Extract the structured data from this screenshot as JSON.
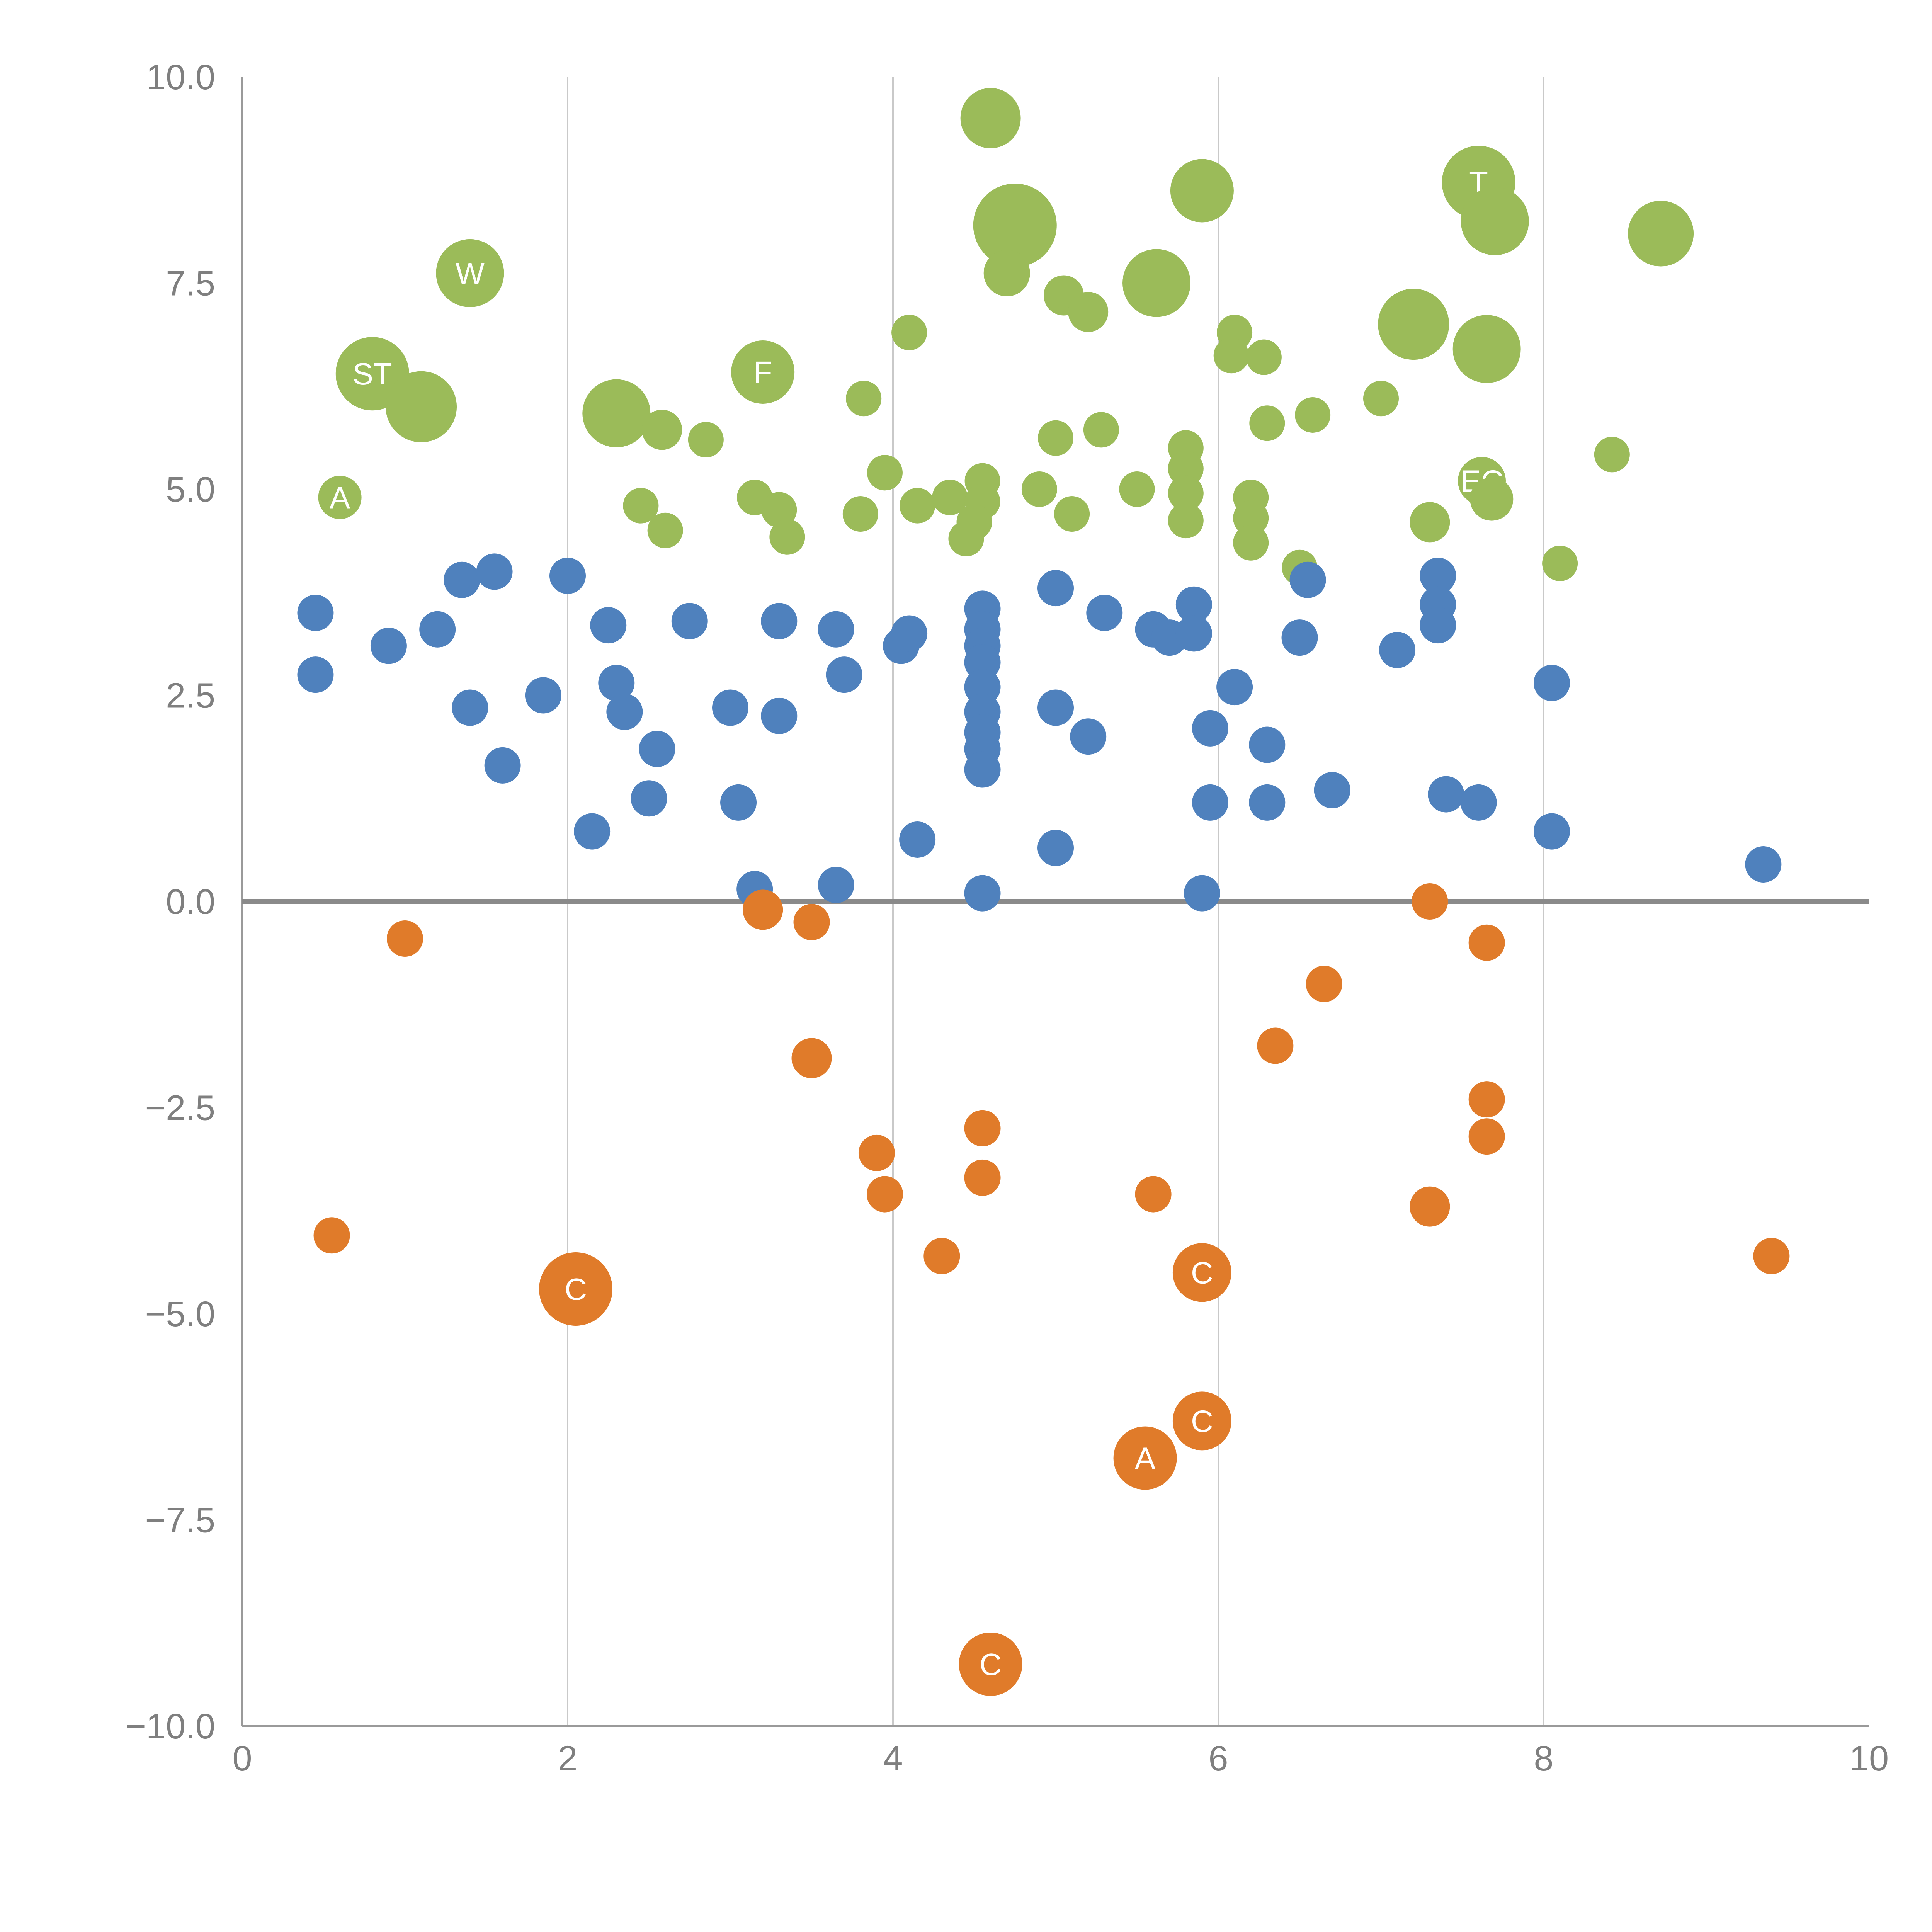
{
  "chart_data": {
    "type": "scatter",
    "title": "",
    "subtitle": "",
    "xlabel": "",
    "ylabel": "",
    "xlim": [
      0,
      10
    ],
    "ylim": [
      -10,
      10
    ],
    "xticks": [
      0,
      2,
      4,
      6,
      8,
      10
    ],
    "xtick_labels": [
      "0",
      "2",
      "4",
      "6",
      "8",
      "10"
    ],
    "yticks": [
      10,
      7.5,
      5,
      2.5,
      0,
      -2.5,
      -5,
      -7.5,
      -10
    ],
    "ytick_labels": [
      "10.0",
      "7.5",
      "5.0",
      "2.5",
      "0.0",
      "−2.5",
      "−5.0",
      "−7.5",
      "−10.0"
    ],
    "grid": {
      "vertical_gridlines_at": [
        2,
        4,
        6,
        8
      ],
      "zero_line_at_y": 0,
      "gridline_color": "#c9c9c9",
      "zero_line_color": "#8a8a8a",
      "spine_color": "#9a9a9a"
    },
    "legend": "none",
    "series": [
      {
        "name": "green",
        "color": "#9bbb59",
        "points": [
          [
            4.6,
            9.5,
            78
          ],
          [
            1.4,
            7.62,
            88,
            "W"
          ],
          [
            4.75,
            8.2,
            108
          ],
          [
            5.9,
            8.62,
            82
          ],
          [
            7.6,
            8.72,
            95,
            "T"
          ],
          [
            7.7,
            8.25,
            88
          ],
          [
            8.72,
            8.1,
            85
          ],
          [
            4.7,
            7.62,
            60
          ],
          [
            5.62,
            7.5,
            88
          ],
          [
            5.05,
            7.35,
            52
          ],
          [
            5.2,
            7.15,
            52
          ],
          [
            7.2,
            7.0,
            92
          ],
          [
            7.65,
            6.7,
            88
          ],
          [
            4.1,
            6.9,
            46
          ],
          [
            6.1,
            6.9,
            46
          ],
          [
            0.8,
            6.4,
            95,
            "ST"
          ],
          [
            1.1,
            6.0,
            92
          ],
          [
            3.2,
            6.42,
            82,
            "F"
          ],
          [
            2.3,
            5.92,
            88
          ],
          [
            2.58,
            5.72,
            52
          ],
          [
            2.85,
            5.6,
            46
          ],
          [
            3.82,
            6.1,
            46
          ],
          [
            6.08,
            6.62,
            46
          ],
          [
            6.28,
            6.6,
            46
          ],
          [
            6.3,
            5.8,
            46
          ],
          [
            6.58,
            5.9,
            46
          ],
          [
            7.0,
            6.1,
            46
          ],
          [
            5.0,
            5.62,
            46
          ],
          [
            5.28,
            5.72,
            46
          ],
          [
            0.6,
            4.9,
            56,
            "A"
          ],
          [
            2.45,
            4.8,
            46
          ],
          [
            2.6,
            4.5,
            46
          ],
          [
            3.15,
            4.9,
            46
          ],
          [
            3.3,
            4.75,
            46
          ],
          [
            3.35,
            4.42,
            46
          ],
          [
            3.8,
            4.7,
            46
          ],
          [
            3.95,
            5.2,
            46
          ],
          [
            4.15,
            4.8,
            46
          ],
          [
            4.35,
            4.9,
            46
          ],
          [
            4.55,
            5.1,
            46
          ],
          [
            4.55,
            4.85,
            46
          ],
          [
            4.5,
            4.6,
            46
          ],
          [
            4.45,
            4.4,
            46
          ],
          [
            4.9,
            5.0,
            46
          ],
          [
            5.1,
            4.7,
            46
          ],
          [
            5.5,
            5.0,
            46
          ],
          [
            5.8,
            5.5,
            46
          ],
          [
            5.8,
            5.25,
            46
          ],
          [
            5.8,
            4.95,
            46
          ],
          [
            5.8,
            4.62,
            46
          ],
          [
            6.2,
            4.9,
            46
          ],
          [
            6.2,
            4.65,
            46
          ],
          [
            6.2,
            4.35,
            46
          ],
          [
            6.5,
            4.05,
            46
          ],
          [
            7.3,
            4.6,
            52
          ],
          [
            7.62,
            5.1,
            62,
            "EC"
          ],
          [
            7.68,
            4.88,
            56
          ],
          [
            8.42,
            5.42,
            46
          ],
          [
            8.1,
            4.1,
            46
          ]
        ]
      },
      {
        "name": "blue",
        "color": "#4f81bd",
        "points": [
          [
            0.45,
            3.5,
            47
          ],
          [
            0.45,
            2.75,
            47
          ],
          [
            0.9,
            3.1,
            47
          ],
          [
            1.2,
            3.3,
            47
          ],
          [
            1.35,
            3.9,
            47
          ],
          [
            1.55,
            4.0,
            47
          ],
          [
            1.4,
            2.35,
            47
          ],
          [
            1.6,
            1.65,
            47
          ],
          [
            1.85,
            2.5,
            47
          ],
          [
            2.0,
            3.95,
            47
          ],
          [
            2.25,
            3.35,
            47
          ],
          [
            2.3,
            2.65,
            47
          ],
          [
            2.35,
            2.3,
            47
          ],
          [
            2.15,
            0.85,
            47
          ],
          [
            2.55,
            1.85,
            47
          ],
          [
            2.5,
            1.25,
            47
          ],
          [
            2.75,
            3.4,
            47
          ],
          [
            3.0,
            2.35,
            47
          ],
          [
            3.05,
            1.2,
            47
          ],
          [
            3.15,
            0.15,
            47
          ],
          [
            3.3,
            3.4,
            47
          ],
          [
            3.3,
            2.25,
            47
          ],
          [
            3.65,
            0.2,
            47
          ],
          [
            3.7,
            2.75,
            47
          ],
          [
            3.65,
            3.3,
            47
          ],
          [
            4.05,
            3.1,
            47
          ],
          [
            4.1,
            3.25,
            47
          ],
          [
            4.15,
            0.75,
            47
          ],
          [
            4.55,
            3.55,
            47
          ],
          [
            4.55,
            3.3,
            47
          ],
          [
            4.55,
            3.1,
            47
          ],
          [
            4.55,
            2.9,
            47
          ],
          [
            4.55,
            2.6,
            47
          ],
          [
            4.55,
            2.3,
            47
          ],
          [
            4.55,
            2.05,
            47
          ],
          [
            4.55,
            1.85,
            47
          ],
          [
            4.55,
            1.6,
            47
          ],
          [
            4.55,
            0.1,
            47
          ],
          [
            5.0,
            3.8,
            47
          ],
          [
            5.0,
            2.35,
            47
          ],
          [
            5.0,
            0.65,
            47
          ],
          [
            5.2,
            2.0,
            47
          ],
          [
            5.3,
            3.5,
            47
          ],
          [
            5.6,
            3.3,
            47
          ],
          [
            5.7,
            3.2,
            47
          ],
          [
            5.85,
            3.6,
            47
          ],
          [
            5.85,
            3.25,
            47
          ],
          [
            5.9,
            0.1,
            47
          ],
          [
            5.95,
            2.1,
            47
          ],
          [
            5.95,
            1.2,
            47
          ],
          [
            6.1,
            2.6,
            47
          ],
          [
            6.3,
            1.9,
            47
          ],
          [
            6.3,
            1.2,
            47
          ],
          [
            6.5,
            3.2,
            47
          ],
          [
            6.55,
            3.9,
            47
          ],
          [
            6.7,
            1.35,
            47
          ],
          [
            7.1,
            3.05,
            47
          ],
          [
            7.35,
            3.95,
            47
          ],
          [
            7.35,
            3.6,
            47
          ],
          [
            7.35,
            3.35,
            47
          ],
          [
            7.4,
            1.3,
            47
          ],
          [
            7.6,
            1.2,
            47
          ],
          [
            8.05,
            2.65,
            47
          ],
          [
            8.05,
            0.85,
            47
          ],
          [
            9.35,
            0.45,
            47
          ]
        ]
      },
      {
        "name": "orange",
        "color": "#e07b2a",
        "points": [
          [
            0.55,
            -4.05,
            47
          ],
          [
            1.0,
            -0.45,
            47
          ],
          [
            2.05,
            -4.7,
            95,
            "C"
          ],
          [
            3.2,
            -0.1,
            52
          ],
          [
            3.5,
            -0.25,
            47
          ],
          [
            3.5,
            -1.9,
            52
          ],
          [
            3.9,
            -3.05,
            47
          ],
          [
            3.95,
            -3.55,
            47
          ],
          [
            4.3,
            -4.3,
            47
          ],
          [
            4.55,
            -2.75,
            47
          ],
          [
            4.55,
            -3.35,
            47
          ],
          [
            4.6,
            -9.25,
            82,
            "C"
          ],
          [
            5.6,
            -3.55,
            47
          ],
          [
            5.55,
            -6.75,
            82,
            "A"
          ],
          [
            5.9,
            -6.3,
            76,
            "C"
          ],
          [
            5.9,
            -4.5,
            76,
            "C"
          ],
          [
            6.35,
            -1.75,
            47
          ],
          [
            6.65,
            -1.0,
            47
          ],
          [
            7.3,
            0.0,
            47
          ],
          [
            7.3,
            -3.7,
            52
          ],
          [
            7.65,
            -0.5,
            47
          ],
          [
            7.65,
            -2.4,
            47
          ],
          [
            7.65,
            -2.85,
            47
          ],
          [
            9.4,
            -4.3,
            47
          ]
        ]
      }
    ]
  },
  "colors": {
    "background": "#ffffff",
    "tick_label": "#7f7f7f",
    "gridline": "#c9c9c9",
    "zero_line": "#8a8a8a",
    "axis_spine": "#9a9a9a",
    "bubble_label_text": "#ffffff"
  }
}
